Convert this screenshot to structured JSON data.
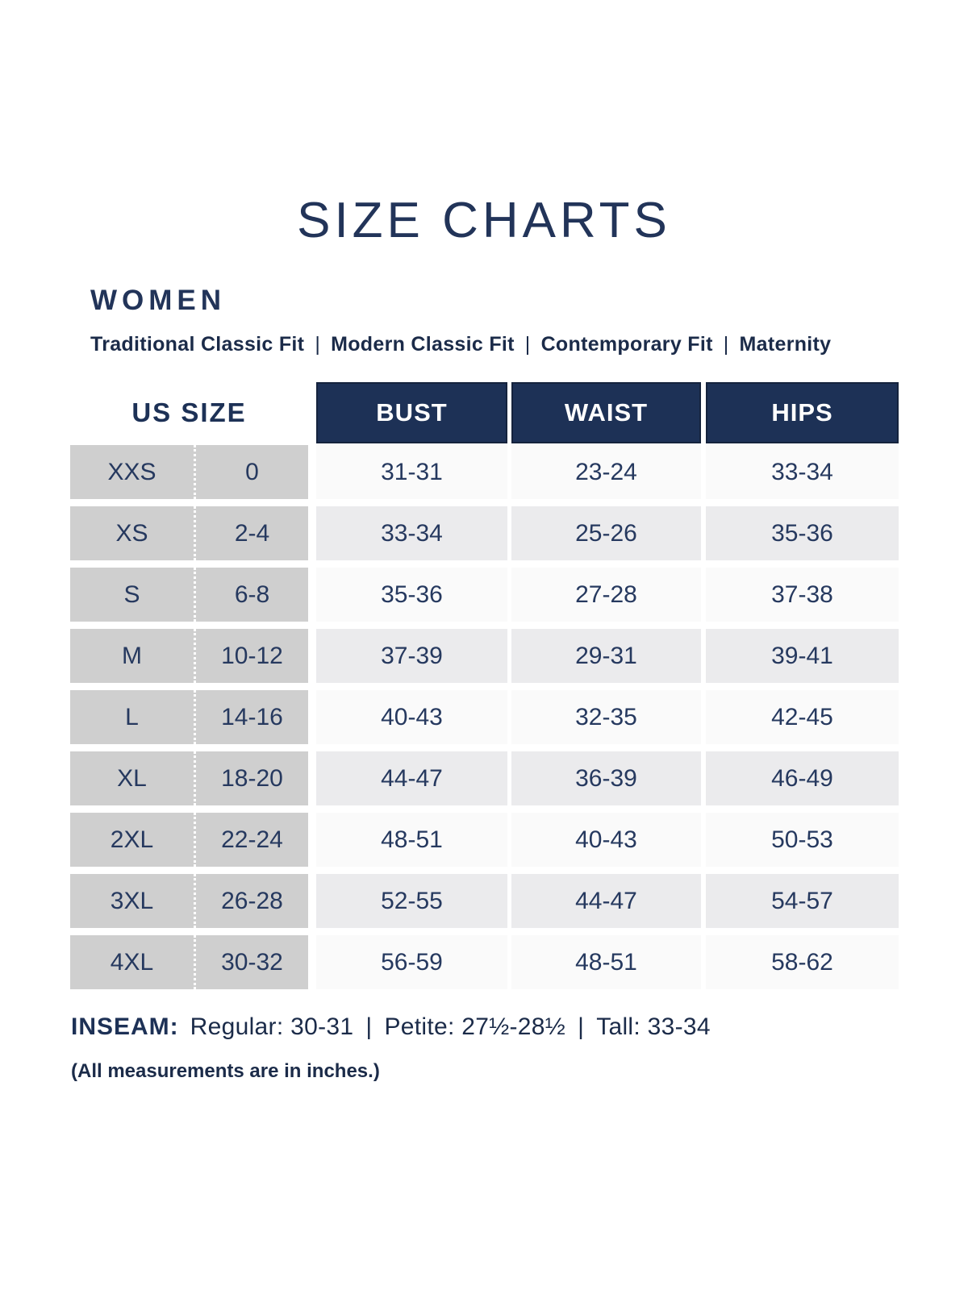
{
  "title": "SIZE CHARTS",
  "separator": "|",
  "women": {
    "heading": "WOMEN",
    "fits": [
      "Traditional Classic Fit",
      "Modern Classic Fit",
      "Contemporary Fit",
      "Maternity"
    ]
  },
  "table": {
    "us_size_header": "US SIZE",
    "columns": {
      "bust": "BUST",
      "waist": "WAIST",
      "hips": "HIPS"
    },
    "rows": [
      {
        "size": "XXS",
        "us": "0",
        "bust": "31-31",
        "waist": "23-24",
        "hips": "33-34"
      },
      {
        "size": "XS",
        "us": "2-4",
        "bust": "33-34",
        "waist": "25-26",
        "hips": "35-36"
      },
      {
        "size": "S",
        "us": "6-8",
        "bust": "35-36",
        "waist": "27-28",
        "hips": "37-38"
      },
      {
        "size": "M",
        "us": "10-12",
        "bust": "37-39",
        "waist": "29-31",
        "hips": "39-41"
      },
      {
        "size": "L",
        "us": "14-16",
        "bust": "40-43",
        "waist": "32-35",
        "hips": "42-45"
      },
      {
        "size": "XL",
        "us": "18-20",
        "bust": "44-47",
        "waist": "36-39",
        "hips": "46-49"
      },
      {
        "size": "2XL",
        "us": "22-24",
        "bust": "48-51",
        "waist": "40-43",
        "hips": "50-53"
      },
      {
        "size": "3XL",
        "us": "26-28",
        "bust": "52-55",
        "waist": "44-47",
        "hips": "54-57"
      },
      {
        "size": "4XL",
        "us": "30-32",
        "bust": "56-59",
        "waist": "48-51",
        "hips": "58-62"
      }
    ]
  },
  "inseam": {
    "label": "INSEAM:",
    "segments": [
      "Regular: 30-31",
      "Petite: 27½-28½",
      "Tall: 33-34"
    ]
  },
  "footnote": "(All measurements are in inches.)",
  "colors": {
    "navy_fill": "#1d3156",
    "navy_border": "#15233d",
    "heading_navy": "#223459",
    "body_text_navy": "#26395f",
    "gray_column": "#cfcfcf",
    "row_shaded": "#ebebed",
    "row_plain": "#fafafa"
  }
}
